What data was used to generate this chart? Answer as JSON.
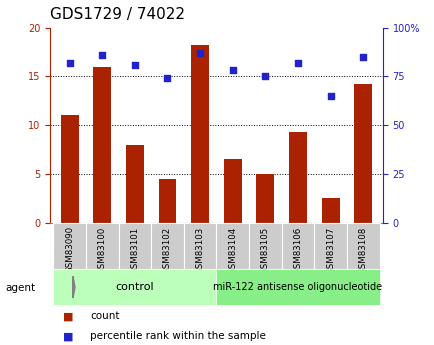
{
  "title": "GDS1729 / 74022",
  "categories": [
    "GSM83090",
    "GSM83100",
    "GSM83101",
    "GSM83102",
    "GSM83103",
    "GSM83104",
    "GSM83105",
    "GSM83106",
    "GSM83107",
    "GSM83108"
  ],
  "counts": [
    11,
    16,
    8,
    4.5,
    18.2,
    6.5,
    5,
    9.3,
    2.5,
    14.2
  ],
  "percentiles": [
    82,
    86,
    81,
    74,
    87,
    78,
    75,
    82,
    65,
    85
  ],
  "bar_color": "#AA2200",
  "dot_color": "#2222CC",
  "ylim_left": [
    0,
    20
  ],
  "ylim_right": [
    0,
    100
  ],
  "yticks_left": [
    0,
    5,
    10,
    15,
    20
  ],
  "yticks_right": [
    0,
    25,
    50,
    75,
    100
  ],
  "ytick_labels_right": [
    "0",
    "25",
    "50",
    "75",
    "100%"
  ],
  "grid_lines": [
    5,
    10,
    15
  ],
  "control_label": "control",
  "treatment_label": "miR-122 antisense oligonucleotide",
  "control_indices": [
    0,
    1,
    2,
    3,
    4
  ],
  "treatment_indices": [
    5,
    6,
    7,
    8,
    9
  ],
  "legend_count_label": "count",
  "legend_pct_label": "percentile rank within the sample",
  "agent_label": "agent",
  "control_bg": "#BBFFBB",
  "treatment_bg": "#88EE88",
  "xlabel_bg": "#CCCCCC",
  "title_fontsize": 11,
  "tick_fontsize": 7,
  "label_fontsize": 7.5
}
